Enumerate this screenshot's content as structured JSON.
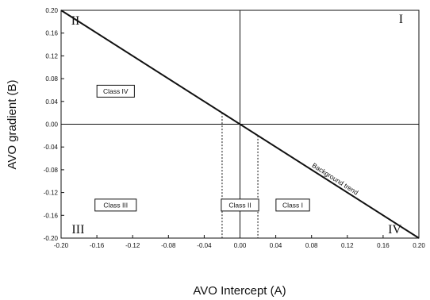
{
  "chart_data": {
    "type": "line",
    "xlabel": "AVO Intercept (A)",
    "ylabel": "AVO gradient (B)",
    "xlim": [
      -0.2,
      0.2
    ],
    "ylim": [
      -0.2,
      0.2
    ],
    "x_ticks": [
      "-0.20",
      "-0.16",
      "-0.12",
      "-0.08",
      "-0.04",
      "0.00",
      "0.04",
      "0.08",
      "0.12",
      "0.16",
      "0.20"
    ],
    "y_ticks": [
      "0.20",
      "0.16",
      "0.12",
      "0.08",
      "0.04",
      "0.00",
      "-0.04",
      "-0.08",
      "-0.12",
      "-0.16",
      "-0.20"
    ],
    "x_tick_values": [
      -0.2,
      -0.16,
      -0.12,
      -0.08,
      -0.04,
      0,
      0.04,
      0.08,
      0.12,
      0.16,
      0.2
    ],
    "y_tick_values": [
      0.2,
      0.16,
      0.12,
      0.08,
      0.04,
      0,
      -0.04,
      -0.08,
      -0.12,
      -0.16,
      -0.2
    ],
    "grid": false,
    "series": [
      {
        "x": [
          -0.2,
          0.2
        ],
        "y": [
          0.2,
          -0.2
        ]
      }
    ],
    "trend_label": "Background trend",
    "quadrants": [
      {
        "label": "I",
        "x": 0.18,
        "y": 0.185
      },
      {
        "label": "II",
        "x": -0.184,
        "y": 0.182
      },
      {
        "label": "III",
        "x": -0.181,
        "y": -0.185
      },
      {
        "label": "IV",
        "x": 0.173,
        "y": -0.185
      }
    ],
    "classes": [
      {
        "label": "Class IV",
        "x": -0.139,
        "y": 0.058
      },
      {
        "label": "Class III",
        "x": -0.139,
        "y": -0.142
      },
      {
        "label": "Class II",
        "x": 0.0,
        "y": -0.142
      },
      {
        "label": "Class I",
        "x": 0.059,
        "y": -0.142
      }
    ],
    "dashed_x": [
      -0.02,
      0.02
    ]
  }
}
